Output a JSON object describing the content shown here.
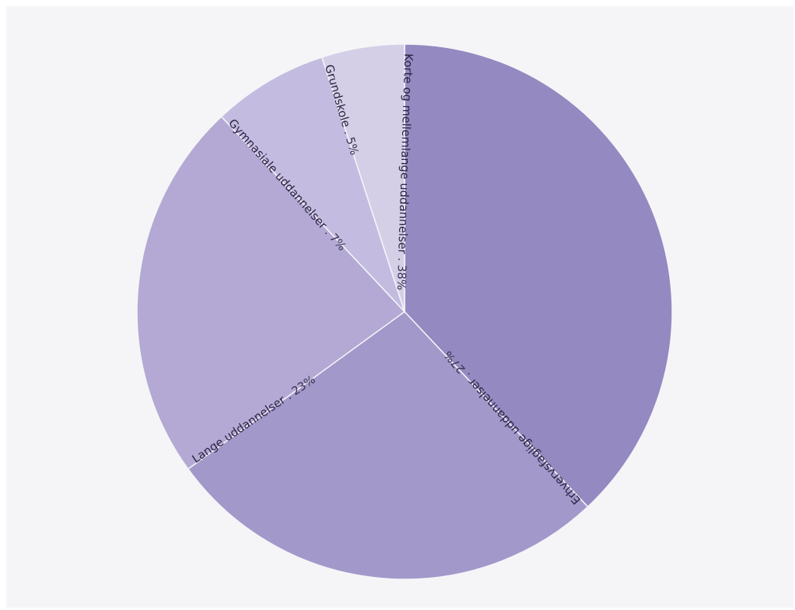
{
  "chart_data": {
    "type": "pie",
    "title": "",
    "start_angle_deg": 0,
    "direction": "clockwise",
    "slices": [
      {
        "label": "Korte og mellemlange uddannelser",
        "value": 38,
        "value_label": "38%",
        "color": "#9489c0"
      },
      {
        "label": "Erhvervsfaglige uddannelser",
        "value": 27,
        "value_label": "27%",
        "color": "#a398ca"
      },
      {
        "label": "Lange uddannelser",
        "value": 23,
        "value_label": "23%",
        "color": "#b3a9d4"
      },
      {
        "label": "Gymnasiale uddannelser",
        "value": 7,
        "value_label": "7%",
        "color": "#c3bce0"
      },
      {
        "label": "Grundskole",
        "value": 5,
        "value_label": "5%",
        "color": "#d4cfe7"
      }
    ],
    "separator": " . "
  }
}
